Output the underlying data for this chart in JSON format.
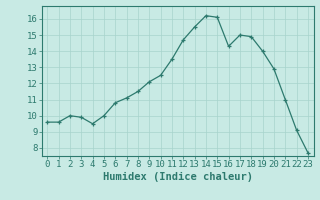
{
  "x": [
    0,
    1,
    2,
    3,
    4,
    5,
    6,
    7,
    8,
    9,
    10,
    11,
    12,
    13,
    14,
    15,
    16,
    17,
    18,
    19,
    20,
    21,
    22,
    23
  ],
  "y": [
    9.6,
    9.6,
    10.0,
    9.9,
    9.5,
    10.0,
    10.8,
    11.1,
    11.5,
    12.1,
    12.5,
    13.5,
    14.7,
    15.5,
    16.2,
    16.1,
    14.3,
    15.0,
    14.9,
    14.0,
    12.9,
    11.0,
    9.1,
    7.7
  ],
  "bg_color": "#c8eae4",
  "line_color": "#2d7a6e",
  "marker_color": "#2d7a6e",
  "grid_color": "#a8d4cc",
  "xlabel": "Humidex (Indice chaleur)",
  "ylim": [
    7.5,
    16.8
  ],
  "xlim": [
    -0.5,
    23.5
  ],
  "yticks": [
    8,
    9,
    10,
    11,
    12,
    13,
    14,
    15,
    16
  ],
  "xticks": [
    0,
    1,
    2,
    3,
    4,
    5,
    6,
    7,
    8,
    9,
    10,
    11,
    12,
    13,
    14,
    15,
    16,
    17,
    18,
    19,
    20,
    21,
    22,
    23
  ],
  "tick_fontsize": 6.5,
  "xlabel_fontsize": 7.5
}
